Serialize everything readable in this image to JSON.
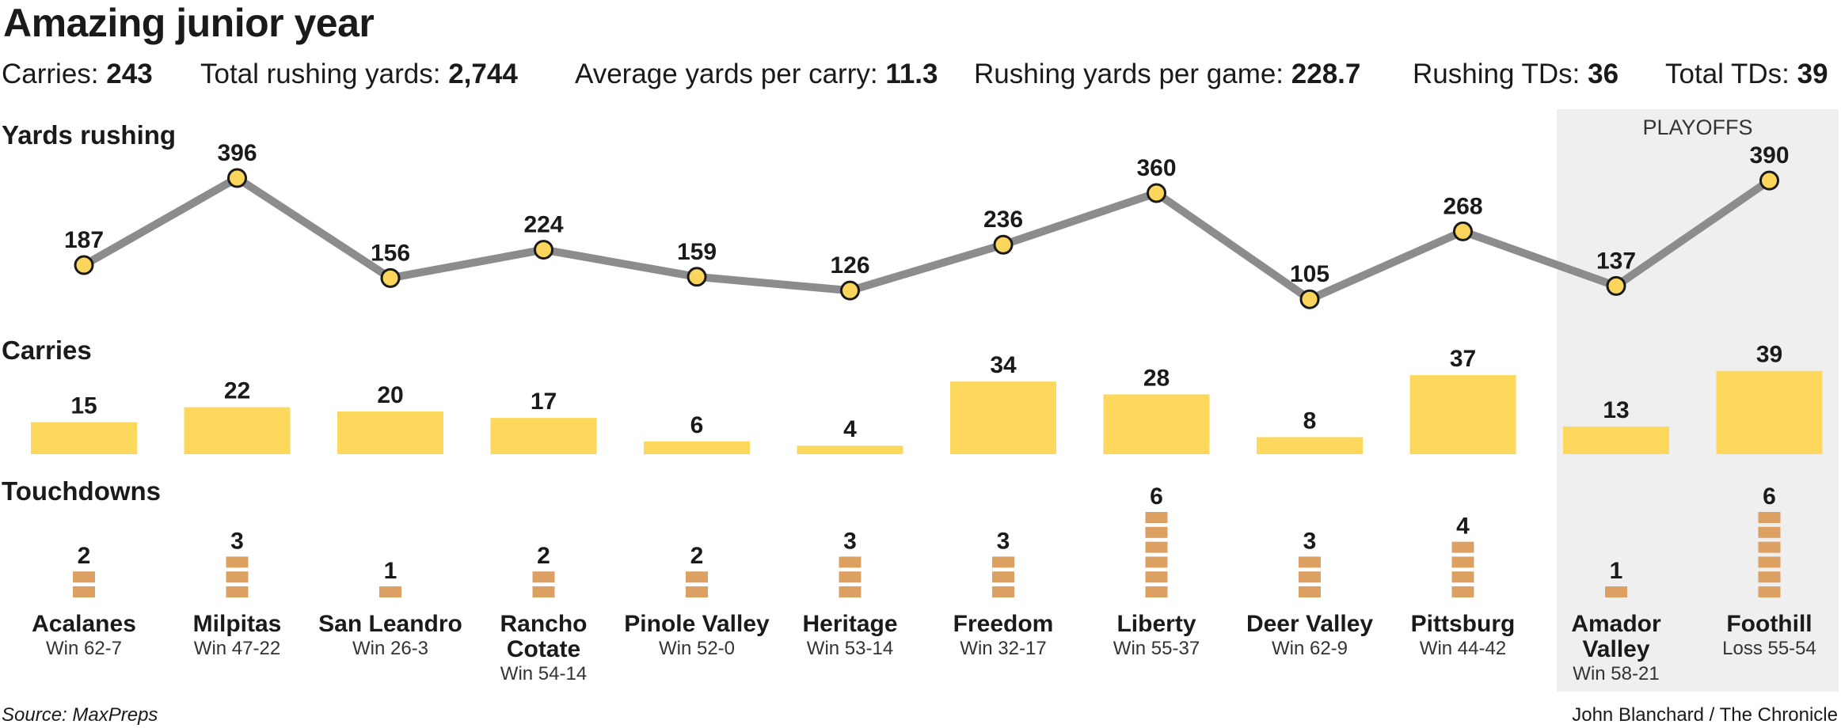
{
  "title": "Amazing junior year",
  "stats": [
    {
      "label": "Carries:",
      "value": "243"
    },
    {
      "label": "Total rushing yards:",
      "value": "2,744"
    },
    {
      "label": "Average yards per carry:",
      "value": "11.3"
    },
    {
      "label": "Rushing yards per game:",
      "value": "228.7"
    },
    {
      "label": "Rushing TDs:",
      "value": "36"
    },
    {
      "label": "Total TDs:",
      "value": "39"
    }
  ],
  "sections": {
    "yards": "Yards rushing",
    "carries": "Carries",
    "touchdowns": "Touchdowns"
  },
  "playoffs_label": "PLAYOFFS",
  "games": [
    {
      "opponent": "Acalanes",
      "result": "Win 62-7"
    },
    {
      "opponent": "Milpitas",
      "result": "Win 47-22"
    },
    {
      "opponent": "San Leandro",
      "result": "Win 26-3"
    },
    {
      "opponent": "Rancho Cotate",
      "result": "Win 54-14"
    },
    {
      "opponent": "Pinole Valley",
      "result": "Win 52-0"
    },
    {
      "opponent": "Heritage",
      "result": "Win 53-14"
    },
    {
      "opponent": "Freedom",
      "result": "Win 32-17"
    },
    {
      "opponent": "Liberty",
      "result": "Win 55-37"
    },
    {
      "opponent": "Deer Valley",
      "result": "Win 62-9"
    },
    {
      "opponent": "Pittsburg",
      "result": "Win 44-42"
    },
    {
      "opponent": "Amador Valley",
      "result": "Win 58-21"
    },
    {
      "opponent": "Foothill",
      "result": "Loss 55-54"
    }
  ],
  "chart_data": [
    {
      "type": "line",
      "title": "Yards rushing",
      "categories": [
        "Acalanes",
        "Milpitas",
        "San Leandro",
        "Rancho Cotate",
        "Pinole Valley",
        "Heritage",
        "Freedom",
        "Liberty",
        "Deer Valley",
        "Pittsburg",
        "Amador Valley",
        "Foothill"
      ],
      "values": [
        187,
        396,
        156,
        224,
        159,
        126,
        236,
        360,
        105,
        268,
        137,
        390
      ]
    },
    {
      "type": "bar",
      "title": "Carries",
      "categories": [
        "Acalanes",
        "Milpitas",
        "San Leandro",
        "Rancho Cotate",
        "Pinole Valley",
        "Heritage",
        "Freedom",
        "Liberty",
        "Deer Valley",
        "Pittsburg",
        "Amador Valley",
        "Foothill"
      ],
      "values": [
        15,
        22,
        20,
        17,
        6,
        4,
        34,
        28,
        8,
        37,
        13,
        39
      ]
    },
    {
      "type": "bar",
      "title": "Touchdowns",
      "categories": [
        "Acalanes",
        "Milpitas",
        "San Leandro",
        "Rancho Cotate",
        "Pinole Valley",
        "Heritage",
        "Freedom",
        "Liberty",
        "Deer Valley",
        "Pittsburg",
        "Amador Valley",
        "Foothill"
      ],
      "values": [
        2,
        3,
        1,
        2,
        2,
        3,
        3,
        6,
        3,
        4,
        1,
        6
      ]
    }
  ],
  "colors": {
    "line": "#8c8c8e",
    "marker_fill": "#fcd65c",
    "carries_bar": "#fdd85d",
    "touchdown_block": "#dca063",
    "playoffs_background": "#efefef"
  },
  "source": "Source: MaxPreps",
  "credit": "John Blanchard / The Chronicle"
}
